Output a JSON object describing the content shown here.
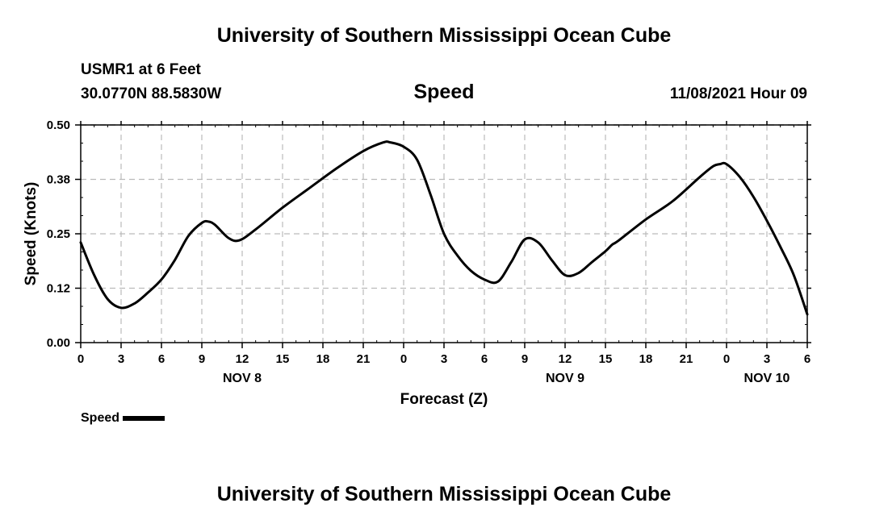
{
  "header": {
    "title": "University of Southern Mississippi Ocean Cube",
    "station": "USMR1 at 6 Feet",
    "coords": "30.0770N  88.5830W",
    "datetime": "11/08/2021 Hour 09"
  },
  "footer": {
    "title": "University of Southern Mississippi Ocean Cube"
  },
  "chart_data": {
    "type": "line",
    "title": "Speed",
    "xlabel": "Forecast (Z)",
    "ylabel": "Speed (Knots)",
    "xlim": [
      0,
      54
    ],
    "ylim": [
      0,
      0.5
    ],
    "x_tick_labels": [
      "0",
      "3",
      "6",
      "9",
      "12",
      "15",
      "18",
      "21",
      "0",
      "3",
      "6",
      "9",
      "12",
      "15",
      "18",
      "21",
      "0",
      "3",
      "6"
    ],
    "date_labels": [
      {
        "label": "NOV 8",
        "at_hour": 12
      },
      {
        "label": "NOV 9",
        "at_hour": 36
      },
      {
        "label": "NOV 10",
        "at_hour": 51
      }
    ],
    "y_ticks": [
      {
        "value": 0.0,
        "label": "0.00"
      },
      {
        "value": 0.125,
        "label": "0.12"
      },
      {
        "value": 0.25,
        "label": "0.25"
      },
      {
        "value": 0.375,
        "label": "0.38"
      },
      {
        "value": 0.5,
        "label": "0.50"
      }
    ],
    "grid": true,
    "legend": "bottom-left",
    "series": [
      {
        "name": "Speed",
        "color": "#000000",
        "x": [
          0,
          1,
          2,
          3,
          4,
          5,
          6,
          7,
          8,
          9,
          9.5,
          10,
          11,
          11.8,
          13,
          15,
          17,
          19,
          21,
          22.5,
          23,
          24,
          25,
          26,
          27,
          28,
          29,
          30,
          31,
          32,
          33,
          34,
          35,
          36,
          37,
          38,
          39,
          39.5,
          40,
          42,
          44,
          46,
          47,
          47.5,
          48,
          49,
          50,
          51,
          52,
          53,
          54
        ],
        "y": [
          0.23,
          0.155,
          0.1,
          0.08,
          0.09,
          0.115,
          0.145,
          0.19,
          0.245,
          0.275,
          0.278,
          0.27,
          0.24,
          0.235,
          0.26,
          0.31,
          0.355,
          0.4,
          0.44,
          0.46,
          0.46,
          0.45,
          0.42,
          0.34,
          0.25,
          0.2,
          0.165,
          0.145,
          0.14,
          0.185,
          0.237,
          0.23,
          0.19,
          0.155,
          0.16,
          0.185,
          0.21,
          0.225,
          0.235,
          0.283,
          0.325,
          0.38,
          0.405,
          0.41,
          0.41,
          0.38,
          0.335,
          0.28,
          0.22,
          0.155,
          0.065
        ]
      }
    ]
  }
}
